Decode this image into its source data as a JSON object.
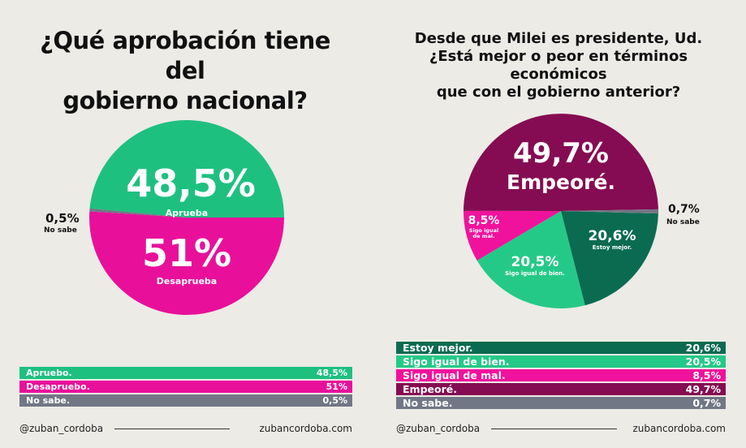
{
  "left": {
    "title_line1": "¿Qué aprobación tiene del",
    "title_line2": "gobierno nacional?",
    "footer_handle": "@zuban_cordoba",
    "footer_site": "zubancordoba.com"
  },
  "right": {
    "title_line1": "Desde que Milei es presidente, Ud.",
    "title_line2": "¿Está mejor o peor en términos económicos",
    "title_line3": "que con el gobierno anterior?",
    "footer_handle": "@zuban_cordoba",
    "footer_site": "zubancordoba.com"
  },
  "colors": {
    "green": "#1ec080",
    "magenta": "#e8109a",
    "gray": "#717784",
    "dark_green": "#0b6b51",
    "light_green": "#25c987",
    "pink": "#f0129c",
    "purple": "#850c52"
  },
  "chart_data": [
    {
      "type": "pie",
      "title": "¿Qué aprobación tiene del gobierno nacional?",
      "slices": [
        {
          "name": "Aprueba",
          "value": 48.5,
          "label_value": "48,5%",
          "legend_label": "Apruebo.",
          "legend_value": "48,5%",
          "color": "#1ec080"
        },
        {
          "name": "Desaprueba",
          "value": 51,
          "label_value": "51%",
          "legend_label": "Desapruebo.",
          "legend_value": "51%",
          "color": "#e8109a"
        },
        {
          "name": "No sabe",
          "value": 0.5,
          "label_value": "0,5%",
          "legend_label": "No sabe.",
          "legend_value": "0,5%",
          "color": "#717784"
        }
      ]
    },
    {
      "type": "pie",
      "title": "Desde que Milei es presidente, Ud. ¿Está mejor o peor en términos económicos que con el gobierno anterior?",
      "slices": [
        {
          "name": "Estoy mejor.",
          "value": 20.6,
          "label_value": "20,6%",
          "legend_label": "Estoy mejor.",
          "legend_value": "20,6%",
          "color": "#0b6b51"
        },
        {
          "name": "Sigo igual de bien.",
          "value": 20.5,
          "label_value": "20,5%",
          "legend_label": "Sigo igual de bien.",
          "legend_value": "20,5%",
          "color": "#25c987"
        },
        {
          "name": "Sigo igual de mal.",
          "value": 8.5,
          "label_value": "8,5%",
          "legend_label": "Sigo igual de mal.",
          "legend_value": "8,5%",
          "color": "#f0129c"
        },
        {
          "name": "Empeoré.",
          "value": 49.7,
          "label_value": "49,7%",
          "legend_label": "Empeoré.",
          "legend_value": "49,7%",
          "color": "#850c52"
        },
        {
          "name": "No sabe",
          "value": 0.7,
          "label_value": "0,7%",
          "legend_label": "No sabe.",
          "legend_value": "0,7%",
          "color": "#717784"
        }
      ]
    }
  ]
}
